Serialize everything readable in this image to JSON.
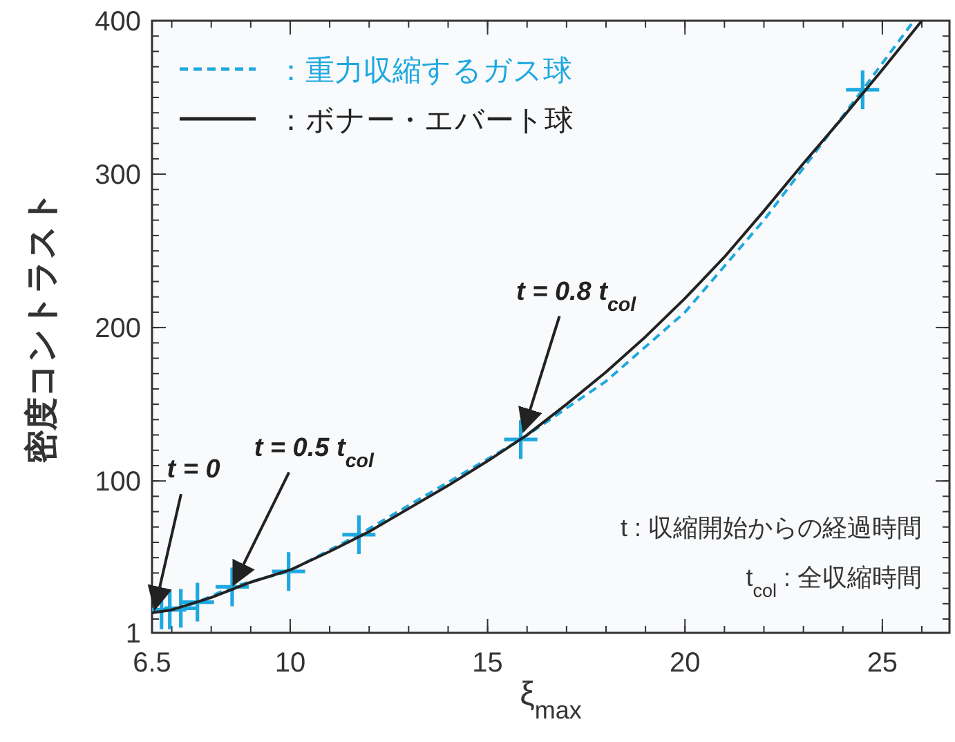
{
  "chart_data": {
    "type": "line",
    "xlabel": "ξ$_{max}$",
    "ylabel": "密度コントラスト",
    "xlim": [
      6.5,
      26.7
    ],
    "xticks": [
      6.5,
      10,
      15,
      20,
      25
    ],
    "ylim": [
      1,
      400
    ],
    "yticks": [
      1,
      100,
      200,
      300,
      400
    ],
    "grid": false,
    "legend": "top left",
    "series": [
      {
        "name": "：重力収縮するガス球",
        "color": "#1ea8e0",
        "line_style": "dashed",
        "marker": "none",
        "x": [
          6.74,
          6.95,
          7.23,
          7.65,
          8.53,
          9.96,
          11.74,
          15.84,
          18,
          20,
          22,
          24.5,
          25.8
        ],
        "values": [
          16,
          16,
          17,
          21,
          31,
          41,
          65,
          127,
          165,
          210,
          270,
          355,
          400
        ]
      },
      {
        "name": "：ボナー・エバート球",
        "color": "#222222",
        "line_style": "solid",
        "marker": "none",
        "x": [
          6.5,
          7,
          8,
          9,
          10,
          11,
          12,
          13,
          14,
          15,
          16,
          17,
          18,
          19,
          20,
          21,
          22,
          23,
          24,
          25,
          26
        ],
        "values": [
          14,
          16,
          24,
          34,
          42,
          54,
          67,
          82,
          97,
          113,
          130,
          150,
          171,
          194,
          219,
          246,
          276,
          307,
          337,
          368,
          400
        ]
      },
      {
        "type": "scatter",
        "color": "#1ea8e0",
        "marker": "cross",
        "x": [
          6.74,
          6.95,
          7.23,
          7.65,
          8.53,
          9.96,
          11.74,
          15.84,
          24.5
        ],
        "values": [
          16,
          16,
          17,
          21,
          31,
          41,
          65,
          127,
          355
        ]
      }
    ],
    "annotations": [
      {
        "text": "t = 0",
        "x": 6.5,
        "y": 14
      },
      {
        "text": "t = 0.5 t$_{col}$",
        "x": 8.5,
        "y": 30
      },
      {
        "text": "t = 0.8 t$_{col}$",
        "x": 15.84,
        "y": 130
      },
      "t : 収縮開始からの経過時間",
      "t$_{col}$ : 全収縮時間"
    ]
  }
}
